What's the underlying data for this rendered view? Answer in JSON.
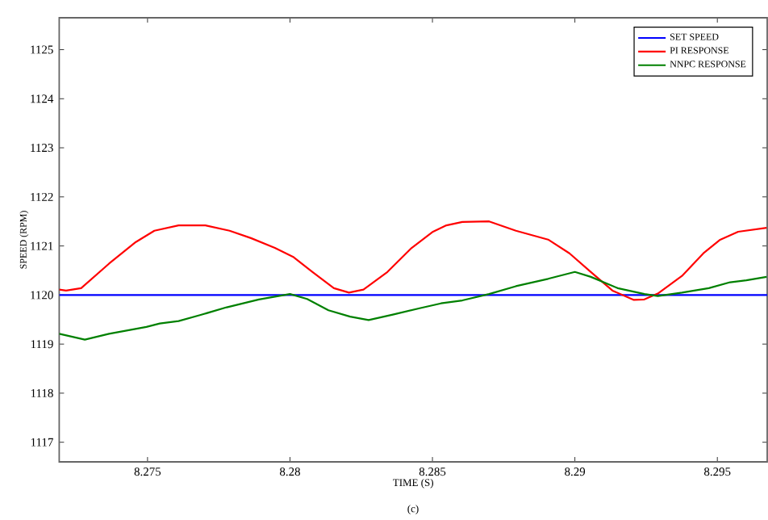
{
  "chart_data": {
    "type": "line",
    "xlabel": "TIME (S)",
    "ylabel": "SPEED (RPM)",
    "annotations": [
      "(c)"
    ],
    "xlim": [
      8.2719,
      8.29675
    ],
    "ylim": [
      1116.6,
      1125.65
    ],
    "xticks": [
      8.275,
      8.28,
      8.285,
      8.29,
      8.295
    ],
    "yticks": [
      1117,
      1118,
      1119,
      1120,
      1121,
      1122,
      1123,
      1124,
      1125
    ],
    "grid": false,
    "legend": "top right",
    "marker": "none",
    "line_style": "solid",
    "series": [
      {
        "name": "SET  SPEED",
        "color": "#0000ff",
        "x": [
          8.2719,
          8.29675
        ],
        "values": [
          1120,
          1120
        ]
      },
      {
        "name": "PI RESPONSE",
        "color": "#ff0000",
        "x": [
          8.2719,
          8.27214,
          8.27267,
          8.27365,
          8.27459,
          8.27524,
          8.27609,
          8.27703,
          8.27788,
          8.27863,
          8.27947,
          8.28013,
          8.28079,
          8.28154,
          8.28207,
          8.28258,
          8.28342,
          8.28427,
          8.28502,
          8.28549,
          8.28605,
          8.28699,
          8.28793,
          8.28906,
          8.28981,
          8.29056,
          8.29132,
          8.29207,
          8.29244,
          8.29291,
          8.29376,
          8.29451,
          8.29508,
          8.29573,
          8.29673
        ],
        "values": [
          1120.11,
          1120.09,
          1120.14,
          1120.64,
          1121.08,
          1121.31,
          1121.42,
          1121.42,
          1121.31,
          1121.16,
          1120.96,
          1120.77,
          1120.47,
          1120.14,
          1120.05,
          1120.11,
          1120.47,
          1120.96,
          1121.29,
          1121.42,
          1121.49,
          1121.5,
          1121.31,
          1121.13,
          1120.85,
          1120.47,
          1120.09,
          1119.9,
          1119.91,
          1120.03,
          1120.39,
          1120.85,
          1121.12,
          1121.29,
          1121.37
        ]
      },
      {
        "name": "NNPC RESPONSE",
        "color": "#008000",
        "x": [
          8.2719,
          8.2728,
          8.27365,
          8.27496,
          8.27543,
          8.27609,
          8.27684,
          8.27778,
          8.27891,
          8.28,
          8.2806,
          8.28135,
          8.28211,
          8.28276,
          8.28361,
          8.28455,
          8.2853,
          8.28605,
          8.28699,
          8.28793,
          8.28906,
          8.29,
          8.29056,
          8.2915,
          8.29244,
          8.29291,
          8.29376,
          8.2947,
          8.29545,
          8.29602,
          8.29673
        ],
        "values": [
          1119.21,
          1119.09,
          1119.21,
          1119.35,
          1119.42,
          1119.47,
          1119.59,
          1119.75,
          1119.91,
          1120.02,
          1119.92,
          1119.69,
          1119.56,
          1119.49,
          1119.6,
          1119.73,
          1119.83,
          1119.89,
          1120.02,
          1120.18,
          1120.33,
          1120.47,
          1120.37,
          1120.14,
          1120.02,
          1119.98,
          1120.05,
          1120.14,
          1120.26,
          1120.3,
          1120.37
        ]
      }
    ]
  }
}
